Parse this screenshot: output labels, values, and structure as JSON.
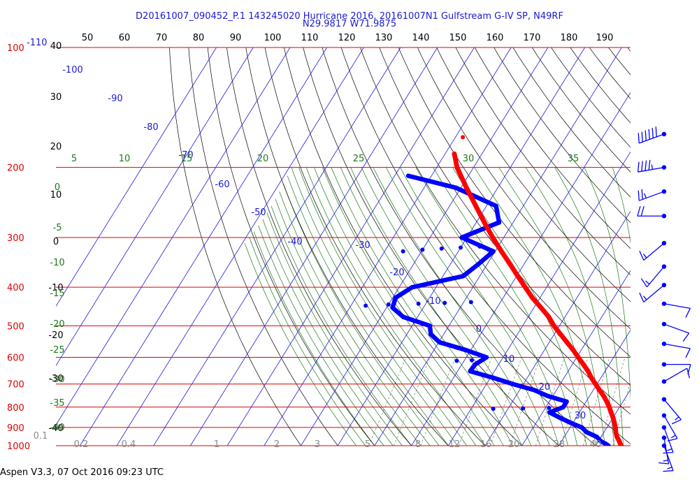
{
  "header": {
    "title_line1": "D20161007_090452_P.1 143245020 Hurricane 2016, 20161007N1 Gulfstream G-IV SP, N49RF",
    "title_line2": "N29.9817 W71.9875"
  },
  "footer": {
    "text": "Aspen V3.3, 07 Oct 2016  09:23 UTC"
  },
  "colors": {
    "pressure_lines": "#dd0000",
    "isotherms": "#1a1ad6",
    "dry_adiabats": "#000000",
    "saturation_adiabats": "#1a7a1a",
    "mixing_ratio": "#8a8a8a",
    "temperature_profile": "#ff0000",
    "dewpoint_profile": "#0000ff",
    "wind_barbs": "#0000ff"
  },
  "chart_data": {
    "type": "skew-t",
    "y_axis": {
      "label_scale": "log-pressure (hPa)",
      "range": [
        1000,
        100
      ]
    },
    "pressure_labels": [
      "100",
      "200",
      "300",
      "400",
      "500",
      "600",
      "700",
      "800",
      "900",
      "1000"
    ],
    "top_axis_labels": [
      "40",
      "50",
      "60",
      "70",
      "80",
      "90",
      "100",
      "110",
      "120",
      "130",
      "140",
      "150",
      "160",
      "170",
      "180",
      "190"
    ],
    "top_left_label": "-110",
    "isotherm_labels": [
      "-100",
      "-90",
      "-80",
      "-70",
      "-60",
      "-50",
      "-40",
      "-30",
      "-20",
      "-10",
      "0",
      "10",
      "20",
      "30"
    ],
    "dry_adiabat_labels": [
      "30",
      "20",
      "10",
      "0",
      "-10",
      "-20",
      "-30",
      "-40"
    ],
    "saturation_adiabat_labels": [
      "5",
      "10",
      "15",
      "20",
      "25",
      "30",
      "35"
    ],
    "saturation_adiabat_side_labels": [
      "0",
      "-5",
      "-10",
      "-15",
      "-20",
      "-25",
      "-30",
      "-35",
      "-40"
    ],
    "mixing_ratio_labels": [
      "0.1",
      "0.2",
      "0.4",
      "1",
      "2",
      "3",
      "5",
      "8",
      "12",
      "16",
      "20",
      "28",
      "40"
    ],
    "temperature": {
      "name": "Temperature",
      "pressure": [
        1000,
        990,
        975,
        950,
        925,
        900,
        875,
        850,
        825,
        800,
        775,
        750,
        725,
        700,
        675,
        650,
        625,
        600,
        575,
        550,
        525,
        500,
        475,
        450,
        425,
        400,
        375,
        350,
        325,
        300,
        275,
        250,
        225,
        200,
        185
      ],
      "temp": [
        27,
        26.4,
        25.7,
        24.3,
        23.2,
        22.3,
        21.2,
        20,
        18.6,
        17.2,
        15.6,
        13.8,
        11.7,
        9.6,
        7.4,
        5.4,
        3,
        0.4,
        -2.2,
        -5.2,
        -8.3,
        -11.5,
        -14.4,
        -18.1,
        -22.1,
        -25.8,
        -29.7,
        -33.8,
        -38.3,
        -43,
        -47.8,
        -52.9,
        -58.5,
        -64.5,
        -67.5
      ]
    },
    "temperature_isolated_point": {
      "pressure": 168,
      "temp": -68
    },
    "dewpoint": {
      "name": "Dewpoint",
      "pressure": [
        1000,
        990,
        975,
        950,
        925,
        900,
        875,
        850,
        825,
        800,
        775,
        750,
        725,
        700,
        675,
        650,
        625,
        600,
        575,
        550,
        525,
        500,
        475,
        450,
        425,
        400,
        375,
        350,
        325,
        300,
        275,
        250,
        225,
        210
      ],
      "temp": [
        23.5,
        22.5,
        20.7,
        18.8,
        15.3,
        13.2,
        9.2,
        5.5,
        1.9,
        4.7,
        4.7,
        -1.4,
        -6,
        -12.9,
        -19.3,
        -26.6,
        -26.4,
        -24.5,
        -31.4,
        -39.8,
        -43.5,
        -45.2,
        -53.9,
        -58.4,
        -59.2,
        -56.5,
        -44.5,
        -42.4,
        -40.5,
        -51.4,
        -43.8,
        -47.4,
        -61.4,
        -76.3
      ]
    },
    "dewpoint_scatter": [
      {
        "pressure": 808,
        "temp": -14
      },
      {
        "pressure": 806,
        "temp": -6
      },
      {
        "pressure": 804,
        "temp": 1
      },
      {
        "pressure": 612,
        "temp": -32
      },
      {
        "pressure": 610,
        "temp": -28
      },
      {
        "pressure": 445,
        "temp": -66
      },
      {
        "pressure": 442,
        "temp": -60
      },
      {
        "pressure": 440,
        "temp": -52
      },
      {
        "pressure": 438,
        "temp": -45
      },
      {
        "pressure": 436,
        "temp": -38
      },
      {
        "pressure": 325,
        "temp": -65
      },
      {
        "pressure": 322,
        "temp": -60
      },
      {
        "pressure": 320,
        "temp": -55
      },
      {
        "pressure": 318,
        "temp": -50
      },
      {
        "pressure": 316,
        "temp": -45
      }
    ],
    "wind_barbs": [
      {
        "pressure": 165,
        "speed_kt": 60,
        "dir": 250
      },
      {
        "pressure": 200,
        "speed_kt": 45,
        "dir": 260
      },
      {
        "pressure": 230,
        "speed_kt": 25,
        "dir": 250
      },
      {
        "pressure": 265,
        "speed_kt": 20,
        "dir": 270
      },
      {
        "pressure": 310,
        "speed_kt": 15,
        "dir": 230
      },
      {
        "pressure": 355,
        "speed_kt": 15,
        "dir": 220
      },
      {
        "pressure": 395,
        "speed_kt": 15,
        "dir": 230
      },
      {
        "pressure": 440,
        "speed_kt": 10,
        "dir": 100
      },
      {
        "pressure": 495,
        "speed_kt": 12,
        "dir": 110
      },
      {
        "pressure": 555,
        "speed_kt": 12,
        "dir": 100
      },
      {
        "pressure": 625,
        "speed_kt": 12,
        "dir": 90
      },
      {
        "pressure": 690,
        "speed_kt": 10,
        "dir": 60
      },
      {
        "pressure": 765,
        "speed_kt": 15,
        "dir": 140
      },
      {
        "pressure": 840,
        "speed_kt": 15,
        "dir": 150
      },
      {
        "pressure": 900,
        "speed_kt": 15,
        "dir": 160
      },
      {
        "pressure": 955,
        "speed_kt": 15,
        "dir": 170
      },
      {
        "pressure": 1000,
        "speed_kt": 15,
        "dir": 160
      }
    ]
  }
}
